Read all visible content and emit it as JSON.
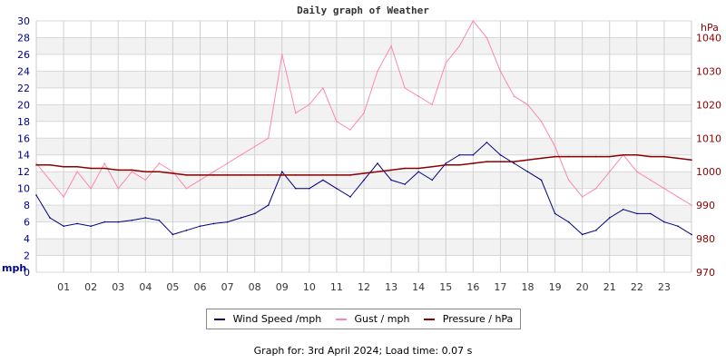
{
  "chart_data": {
    "type": "line",
    "title": "Daily graph of Weather",
    "x": [
      0,
      0.5,
      1,
      1.5,
      2,
      2.5,
      3,
      3.5,
      4,
      4.5,
      5,
      5.5,
      6,
      6.5,
      7,
      7.5,
      8,
      8.5,
      9,
      9.5,
      10,
      10.5,
      11,
      11.5,
      12,
      12.5,
      13,
      13.5,
      14,
      14.5,
      15,
      15.5,
      16,
      16.5,
      17,
      17.5,
      18,
      18.5,
      19,
      19.5,
      20,
      20.5,
      21,
      21.5,
      22,
      22.5,
      23,
      23.5,
      24
    ],
    "x_tick_labels": [
      "01",
      "02",
      "03",
      "04",
      "05",
      "06",
      "07",
      "08",
      "09",
      "10",
      "11",
      "12",
      "13",
      "14",
      "15",
      "16",
      "17",
      "18",
      "19",
      "20",
      "21",
      "22",
      "23"
    ],
    "xlim": [
      0,
      24
    ],
    "y_left": {
      "label": "mph",
      "ylim": [
        0,
        30
      ],
      "ticks": [
        0,
        2,
        4,
        6,
        8,
        10,
        12,
        14,
        16,
        18,
        20,
        22,
        24,
        26,
        28,
        30
      ]
    },
    "y_right": {
      "label": "hPa",
      "ylim": [
        970,
        1045
      ],
      "ticks": [
        970,
        980,
        990,
        1000,
        1010,
        1020,
        1030,
        1040
      ]
    },
    "grid": true,
    "legend_position": "bottom",
    "series": [
      {
        "name": "Wind Speed /mph",
        "axis": "left",
        "color": "#000080",
        "values": [
          9.2,
          6.5,
          5.5,
          5.8,
          5.5,
          6,
          6,
          6.2,
          6.5,
          6.2,
          4.5,
          5,
          5.5,
          5.8,
          6,
          6.5,
          7,
          8,
          12,
          10,
          10,
          11,
          10,
          9,
          11,
          13,
          11,
          10.5,
          12,
          11,
          13,
          14,
          14,
          15.5,
          14,
          13,
          12,
          11,
          7,
          6,
          4.5,
          5,
          6.5,
          7.5,
          7,
          7,
          6,
          5.5,
          4.5
        ]
      },
      {
        "name": "Gust / mph",
        "axis": "left",
        "color": "#ff88aa",
        "values": [
          13,
          11,
          9,
          12,
          10,
          13,
          10,
          12,
          11,
          13,
          12,
          10,
          11,
          12,
          13,
          14,
          15,
          16,
          26,
          19,
          20,
          22,
          18,
          17,
          19,
          24,
          27,
          22,
          21,
          20,
          25,
          27,
          30,
          28,
          24,
          21,
          20,
          18,
          15,
          11,
          9,
          10,
          12,
          14,
          12,
          11,
          10,
          9,
          8
        ]
      },
      {
        "name": "Pressure / hPa",
        "axis": "right",
        "color": "#8b0000",
        "values": [
          1002,
          1002,
          1001.5,
          1001.5,
          1001,
          1001,
          1000.5,
          1000.5,
          1000,
          1000,
          999.5,
          999,
          999,
          999,
          999,
          999,
          999,
          999,
          999,
          999,
          999,
          999,
          999,
          999,
          999.5,
          1000,
          1000.5,
          1001,
          1001,
          1001.5,
          1002,
          1002,
          1002.5,
          1003,
          1003,
          1003,
          1003.5,
          1004,
          1004.5,
          1004.5,
          1004.5,
          1004.5,
          1004.5,
          1005,
          1005,
          1004.5,
          1004.5,
          1004,
          1003.5
        ]
      }
    ]
  },
  "footer": "Graph for: 3rd April 2024; Load time: 0.07 s"
}
